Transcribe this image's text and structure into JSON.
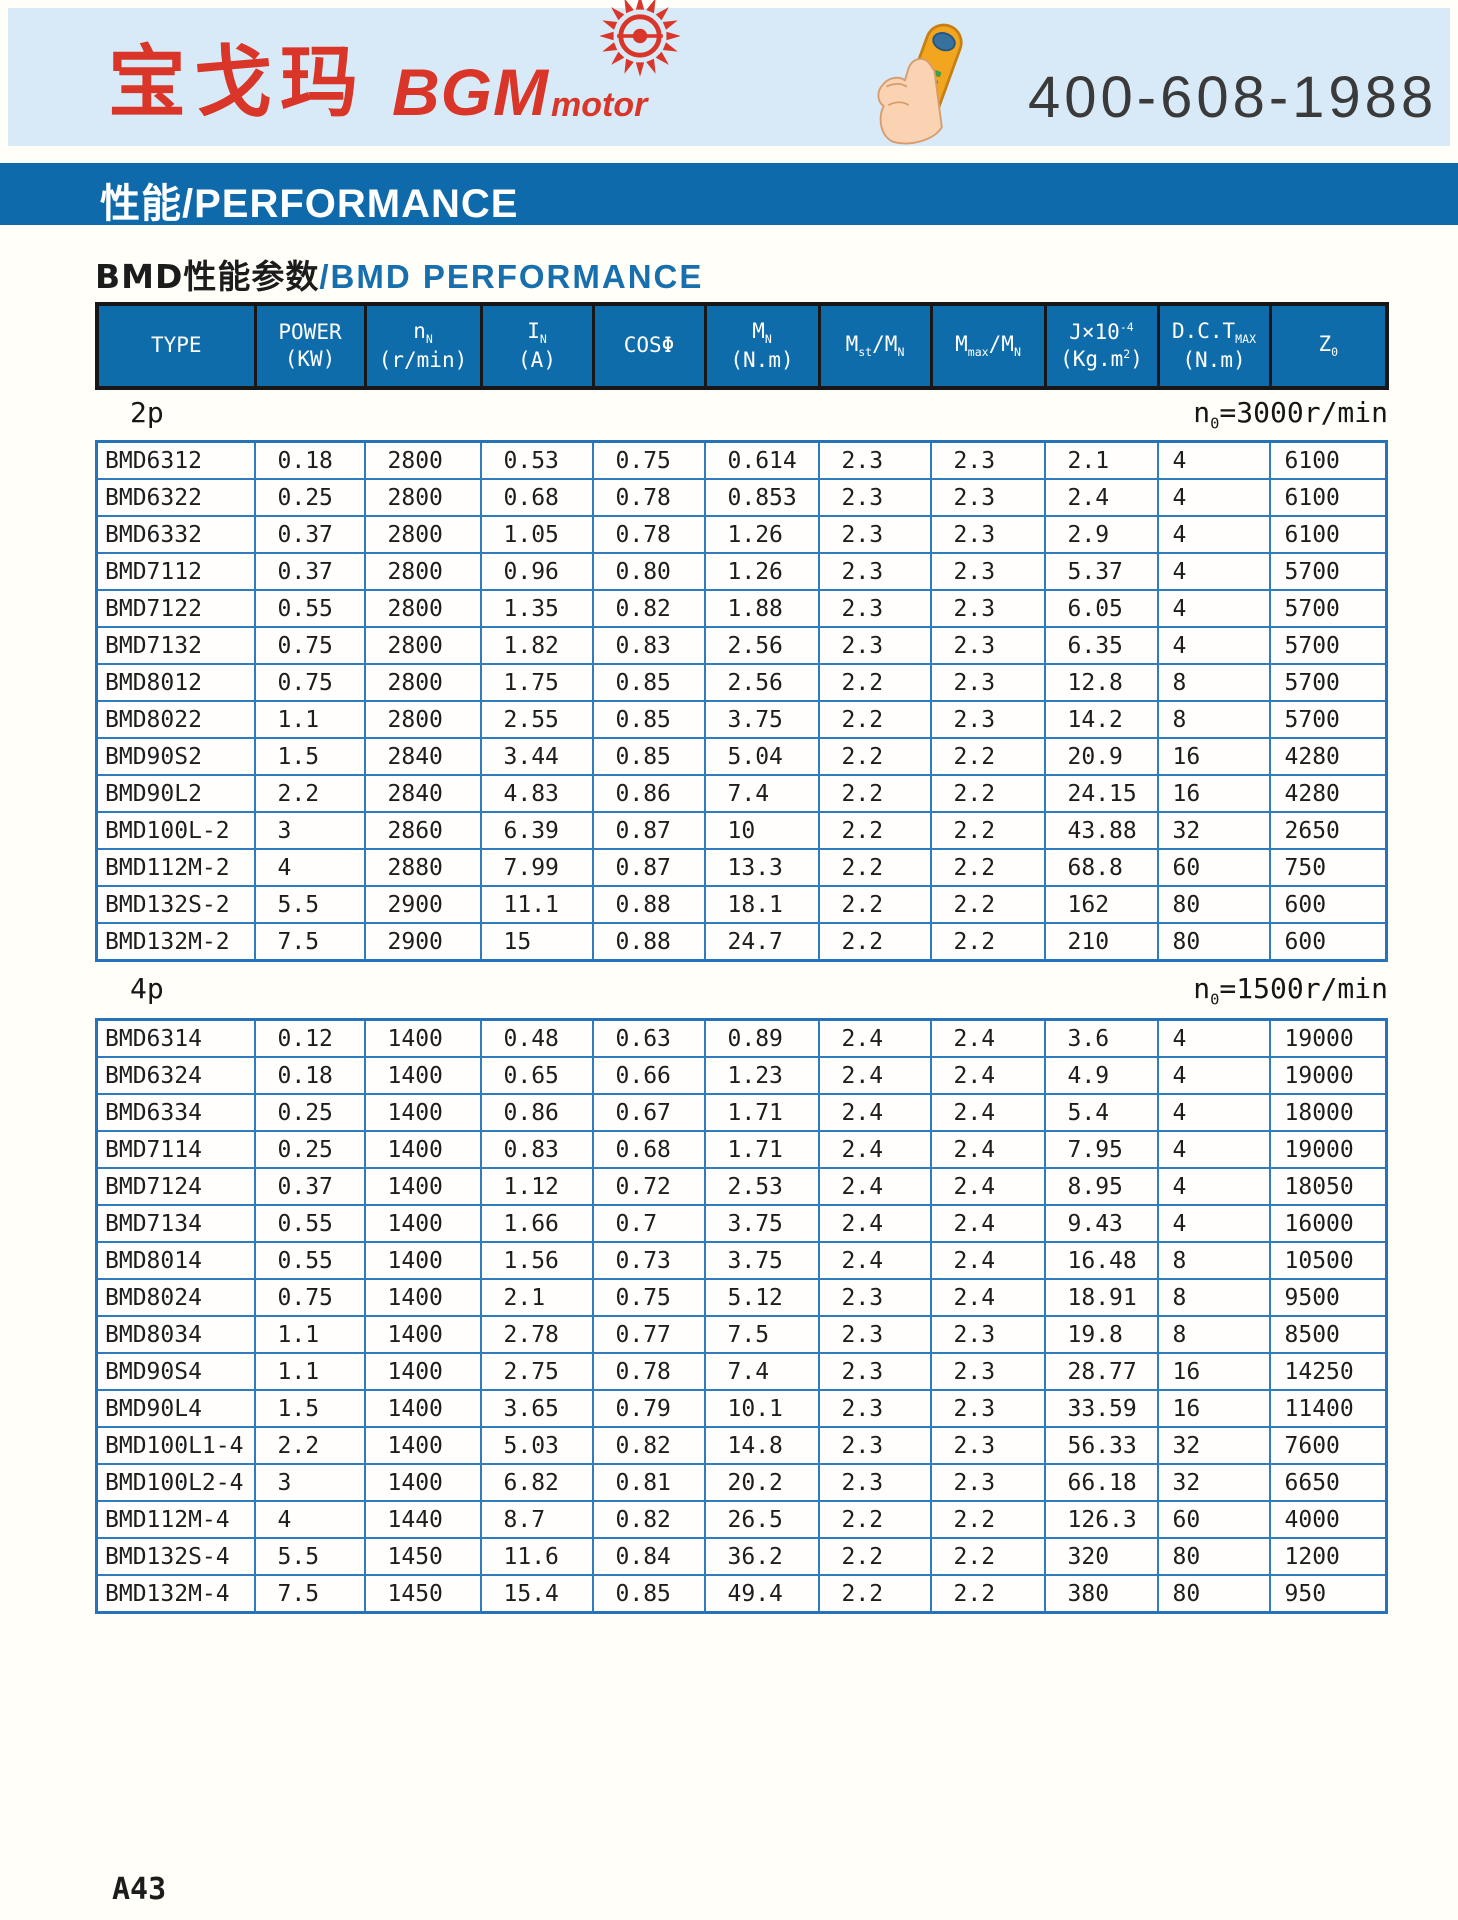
{
  "header": {
    "logo_cn": "宝戈玛",
    "logo_en": "BGM",
    "logo_en2": "motor",
    "phone": "400-608-1988"
  },
  "banner": {
    "label": "性能/PERFORMANCE"
  },
  "title": {
    "cn": "BMD性能参数",
    "en": "/BMD PERFORMANCE"
  },
  "table": {
    "columns": {
      "type": "TYPE",
      "power_l1": "POWER",
      "power_l2": "(KW)",
      "speed_base": "n",
      "speed_sub": "N",
      "speed_l2": "(r/min)",
      "current_base": "I",
      "current_sub": "N",
      "current_l2": "(A)",
      "cos": "COSΦ",
      "torque_base": "M",
      "torque_sub": "N",
      "torque_l2": "(N.m)",
      "mst_b1": "M",
      "mst_s1": "st",
      "mst_mid": "/",
      "mst_b2": "M",
      "mst_s2": "N",
      "mmax_b1": "M",
      "mmax_s1": "max",
      "mmax_mid": "/",
      "mmax_b2": "M",
      "mmax_s2": "N",
      "j_b": "J×10",
      "j_sup": "-4",
      "j_l2a": "(Kg.m",
      "j_sup2": "2",
      "j_l2b": ")",
      "dct_b": "D.C.T",
      "dct_sub": "MAX",
      "dct_l2": "(N.m)",
      "z_b": "Z",
      "z_sub": "0"
    }
  },
  "sections": [
    {
      "label": "2p",
      "note_base": "n",
      "note_sub": "0",
      "note_rest": "=3000r/min",
      "rows": [
        [
          "BMD6312",
          "0.18",
          "2800",
          "0.53",
          "0.75",
          "0.614",
          "2.3",
          "2.3",
          "2.1",
          "4",
          "6100"
        ],
        [
          "BMD6322",
          "0.25",
          "2800",
          "0.68",
          "0.78",
          "0.853",
          "2.3",
          "2.3",
          "2.4",
          "4",
          "6100"
        ],
        [
          "BMD6332",
          "0.37",
          "2800",
          "1.05",
          "0.78",
          "1.26",
          "2.3",
          "2.3",
          "2.9",
          "4",
          "6100"
        ],
        [
          "BMD7112",
          "0.37",
          "2800",
          "0.96",
          "0.80",
          "1.26",
          "2.3",
          "2.3",
          "5.37",
          "4",
          "5700"
        ],
        [
          "BMD7122",
          "0.55",
          "2800",
          "1.35",
          "0.82",
          "1.88",
          "2.3",
          "2.3",
          "6.05",
          "4",
          "5700"
        ],
        [
          "BMD7132",
          "0.75",
          "2800",
          "1.82",
          "0.83",
          "2.56",
          "2.3",
          "2.3",
          "6.35",
          "4",
          "5700"
        ],
        [
          "BMD8012",
          "0.75",
          "2800",
          "1.75",
          "0.85",
          "2.56",
          "2.2",
          "2.3",
          "12.8",
          "8",
          "5700"
        ],
        [
          "BMD8022",
          "1.1",
          "2800",
          "2.55",
          "0.85",
          "3.75",
          "2.2",
          "2.3",
          "14.2",
          "8",
          "5700"
        ],
        [
          "BMD90S2",
          "1.5",
          "2840",
          "3.44",
          "0.85",
          "5.04",
          "2.2",
          "2.2",
          "20.9",
          "16",
          "4280"
        ],
        [
          "BMD90L2",
          "2.2",
          "2840",
          "4.83",
          "0.86",
          "7.4",
          "2.2",
          "2.2",
          "24.15",
          "16",
          "4280"
        ],
        [
          "BMD100L-2",
          "3",
          "2860",
          "6.39",
          "0.87",
          "10",
          "2.2",
          "2.2",
          "43.88",
          "32",
          "2650"
        ],
        [
          "BMD112M-2",
          "4",
          "2880",
          "7.99",
          "0.87",
          "13.3",
          "2.2",
          "2.2",
          "68.8",
          "60",
          "750"
        ],
        [
          "BMD132S-2",
          "5.5",
          "2900",
          "11.1",
          "0.88",
          "18.1",
          "2.2",
          "2.2",
          "162",
          "80",
          "600"
        ],
        [
          "BMD132M-2",
          "7.5",
          "2900",
          "15",
          "0.88",
          "24.7",
          "2.2",
          "2.2",
          "210",
          "80",
          "600"
        ]
      ]
    },
    {
      "label": "4p",
      "note_base": "n",
      "note_sub": "0",
      "note_rest": "=1500r/min",
      "rows": [
        [
          "BMD6314",
          "0.12",
          "1400",
          "0.48",
          "0.63",
          "0.89",
          "2.4",
          "2.4",
          "3.6",
          "4",
          "19000"
        ],
        [
          "BMD6324",
          "0.18",
          "1400",
          "0.65",
          "0.66",
          "1.23",
          "2.4",
          "2.4",
          "4.9",
          "4",
          "19000"
        ],
        [
          "BMD6334",
          "0.25",
          "1400",
          "0.86",
          "0.67",
          "1.71",
          "2.4",
          "2.4",
          "5.4",
          "4",
          "18000"
        ],
        [
          "BMD7114",
          "0.25",
          "1400",
          "0.83",
          "0.68",
          "1.71",
          "2.4",
          "2.4",
          "7.95",
          "4",
          "19000"
        ],
        [
          "BMD7124",
          "0.37",
          "1400",
          "1.12",
          "0.72",
          "2.53",
          "2.4",
          "2.4",
          "8.95",
          "4",
          "18050"
        ],
        [
          "BMD7134",
          "0.55",
          "1400",
          "1.66",
          "0.7",
          "3.75",
          "2.4",
          "2.4",
          "9.43",
          "4",
          "16000"
        ],
        [
          "BMD8014",
          "0.55",
          "1400",
          "1.56",
          "0.73",
          "3.75",
          "2.4",
          "2.4",
          "16.48",
          "8",
          "10500"
        ],
        [
          "BMD8024",
          "0.75",
          "1400",
          "2.1",
          "0.75",
          "5.12",
          "2.3",
          "2.4",
          "18.91",
          "8",
          "9500"
        ],
        [
          "BMD8034",
          "1.1",
          "1400",
          "2.78",
          "0.77",
          "7.5",
          "2.3",
          "2.3",
          "19.8",
          "8",
          "8500"
        ],
        [
          "BMD90S4",
          "1.1",
          "1400",
          "2.75",
          "0.78",
          "7.4",
          "2.3",
          "2.3",
          "28.77",
          "16",
          "14250"
        ],
        [
          "BMD90L4",
          "1.5",
          "1400",
          "3.65",
          "0.79",
          "10.1",
          "2.3",
          "2.3",
          "33.59",
          "16",
          "11400"
        ],
        [
          "BMD100L1-4",
          "2.2",
          "1400",
          "5.03",
          "0.82",
          "14.8",
          "2.3",
          "2.3",
          "56.33",
          "32",
          "7600"
        ],
        [
          "BMD100L2-4",
          "3",
          "1400",
          "6.82",
          "0.81",
          "20.2",
          "2.3",
          "2.3",
          "66.18",
          "32",
          "6650"
        ],
        [
          "BMD112M-4",
          "4",
          "1440",
          "8.7",
          "0.82",
          "26.5",
          "2.2",
          "2.2",
          "126.3",
          "60",
          "4000"
        ],
        [
          "BMD132S-4",
          "5.5",
          "1450",
          "11.6",
          "0.84",
          "36.2",
          "2.2",
          "2.2",
          "320",
          "80",
          "1200"
        ],
        [
          "BMD132M-4",
          "7.5",
          "1450",
          "15.4",
          "0.85",
          "49.4",
          "2.2",
          "2.2",
          "380",
          "80",
          "950"
        ]
      ]
    }
  ],
  "footer": {
    "page": "A43"
  },
  "colors": {
    "band_blue": "#d8eaf7",
    "banner_blue": "#0f6aab",
    "header_cell_blue": "#0f6cab",
    "table_border_blue": "#2e7cbe",
    "logo_red": "#d93528",
    "title_blue": "#176fad"
  }
}
